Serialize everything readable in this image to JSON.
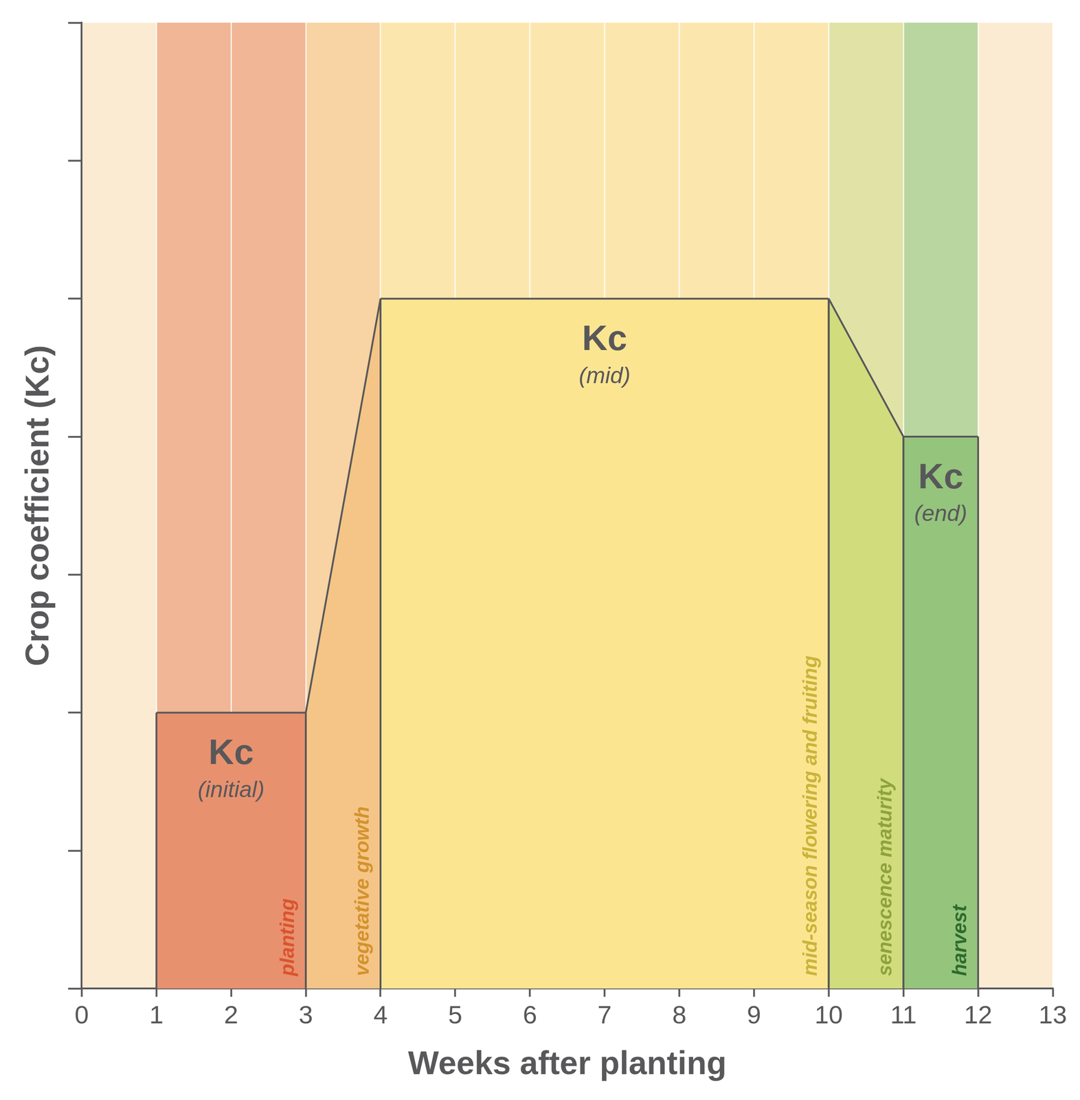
{
  "chart_data": {
    "type": "area",
    "x_label": "Weeks after planting",
    "y_label": "Crop coefficient (Kc)",
    "xlim": [
      0,
      13
    ],
    "xticks": [
      0,
      1,
      2,
      3,
      4,
      5,
      6,
      7,
      8,
      9,
      10,
      11,
      12,
      13
    ],
    "ylim": [
      0,
      7
    ],
    "yticks": [
      0,
      1,
      2,
      3,
      4,
      5,
      6,
      7
    ],
    "tick_labels": "x",
    "grid": true,
    "bands": [
      {
        "x": [
          0,
          1
        ],
        "color": "#fbebd3"
      },
      {
        "x": [
          1,
          3
        ],
        "color": "#f0b696"
      },
      {
        "x": [
          3,
          4
        ],
        "color": "#f8d3a3"
      },
      {
        "x": [
          4,
          10
        ],
        "color": "#fbe7ae"
      },
      {
        "x": [
          10,
          11
        ],
        "color": "#e0e3a5"
      },
      {
        "x": [
          11,
          12
        ],
        "color": "#b9d5a0"
      },
      {
        "x": [
          12,
          13
        ],
        "color": "#fbebd3"
      }
    ],
    "series": [
      {
        "name": "planting",
        "text": "Kc",
        "subtext": "(initial)",
        "color": "#e8916f",
        "label_color": "#d9542e",
        "x": [
          1,
          3
        ],
        "values": [
          2,
          2
        ]
      },
      {
        "name": "vegetative growth",
        "color": "#f4c587",
        "label_color": "#d4922d",
        "x": [
          3,
          4
        ],
        "values": [
          2,
          5
        ]
      },
      {
        "name": "mid-season flowering and fruiting",
        "text": "Kc",
        "subtext": "(mid)",
        "color": "#fce591",
        "label_color": "#c9b43a",
        "x": [
          4,
          10
        ],
        "values": [
          5,
          5
        ]
      },
      {
        "name": "senescence maturity",
        "color": "#d1dc7d",
        "label_color": "#8ea33b",
        "x": [
          10,
          11
        ],
        "values": [
          5,
          4
        ]
      },
      {
        "name": "harvest",
        "text": "Kc",
        "subtext": "(end)",
        "color": "#95c47c",
        "label_color": "#2e6b2e",
        "x": [
          11,
          12
        ],
        "values": [
          4,
          4
        ]
      }
    ]
  }
}
